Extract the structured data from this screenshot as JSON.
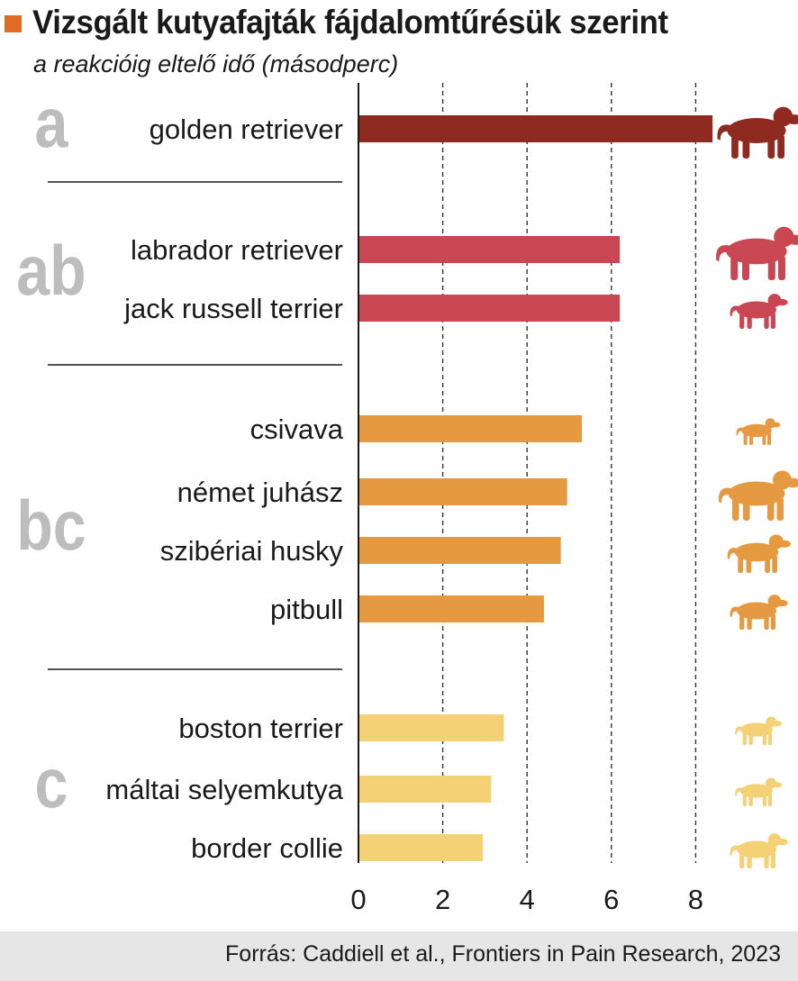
{
  "header": {
    "title": "Vizsgált kutyafajták fájdalomtűrésük szerint",
    "subtitle": "a reakcióig eltelő idő (másodperc)"
  },
  "footer": {
    "source": "Forrás: Caddiell et al., Frontiers in Pain Research, 2023"
  },
  "chart_data": {
    "type": "bar",
    "orientation": "horizontal",
    "title": "Vizsgált kutyafajták fájdalomtűrésük szerint",
    "subtitle": "a reakcióig eltelő idő (másodperc)",
    "xlabel": "",
    "ylabel": "",
    "xlim": [
      0,
      9
    ],
    "xticks": [
      0,
      2,
      4,
      6,
      8
    ],
    "grid": "vertical dashed",
    "categories": [
      "golden retriever",
      "labrador retriever",
      "jack russell terrier",
      "csivava",
      "német juhász",
      "szibériai husky",
      "pitbull",
      "boston terrier",
      "máltai selyemkutya",
      "border collie"
    ],
    "values": [
      8.4,
      6.2,
      6.2,
      5.3,
      4.95,
      4.8,
      4.4,
      3.45,
      3.15,
      2.95
    ],
    "groups": [
      {
        "label": "a",
        "color": "#8e2a1f",
        "categories": [
          "golden retriever"
        ]
      },
      {
        "label": "ab",
        "color": "#c84753",
        "categories": [
          "labrador retriever",
          "jack russell terrier"
        ]
      },
      {
        "label": "bc",
        "color": "#e59a42",
        "categories": [
          "csivava",
          "német juhász",
          "szibériai husky",
          "pitbull"
        ]
      },
      {
        "label": "c",
        "color": "#f5d176",
        "categories": [
          "boston terrier",
          "máltai selyemkutya",
          "border collie"
        ]
      }
    ],
    "icons": [
      "golden-retriever-silhouette-icon",
      "labrador-silhouette-icon",
      "jack-russell-silhouette-icon",
      "chihuahua-silhouette-icon",
      "german-shepherd-silhouette-icon",
      "husky-silhouette-icon",
      "pitbull-silhouette-icon",
      "boston-terrier-silhouette-icon",
      "maltese-silhouette-icon",
      "border-collie-silhouette-icon"
    ],
    "group_label_color": "#bdbdbd"
  }
}
